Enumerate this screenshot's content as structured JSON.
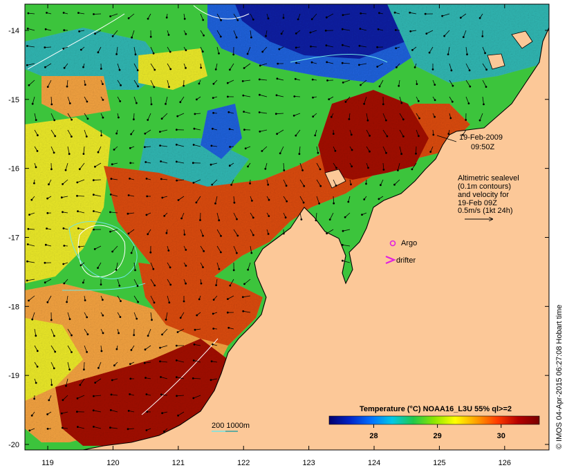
{
  "map": {
    "lon_range": [
      118.65,
      126.68
    ],
    "lat_range": [
      -20.08,
      -13.62
    ],
    "lon_ticks": [
      119,
      120,
      121,
      122,
      123,
      124,
      125,
      126
    ],
    "lat_ticks": [
      -14,
      -15,
      -16,
      -17,
      -18,
      -19,
      -20
    ],
    "colors": {
      "land": "#fcc898",
      "very_warm": "#a00a00",
      "warm": "#d84a10",
      "mid_warm": "#f0a040",
      "yellow": "#e8e628",
      "green": "#3cc43c",
      "cyan": "#30b4b0",
      "cool": "#2060d8",
      "cold": "#0a20a0",
      "coast": "#000000",
      "contour_white": "#ffffff",
      "contour_cyan": "#70e6e6"
    }
  },
  "annotations": {
    "date_line1": "19-Feb-2009",
    "date_line2": "09:50Z",
    "alt_line1": "Altimetric sealevel",
    "alt_line2": "(0.1m contours)",
    "alt_line3": "and velocity for",
    "alt_line4": "19-Feb 09Z",
    "alt_line5": "0.5m/s (1kt 24h)",
    "argo_label": "Argo",
    "drifter_label": "drifter",
    "depth_label": "200  1000m"
  },
  "colorbar": {
    "title": "Temperature (°C) NOAA16_L3U 55% ql>=2",
    "ticks": [
      28,
      29,
      30
    ],
    "range": [
      27.3,
      30.6
    ],
    "stops": [
      "#00006e",
      "#0024c8",
      "#0070ff",
      "#00c8e6",
      "#20c84a",
      "#8ee600",
      "#ffff00",
      "#ffa000",
      "#ff3c00",
      "#b40000",
      "#780000"
    ]
  },
  "credit": "© IMOS 04-Apr-2015 06:27:08 Hobart time"
}
